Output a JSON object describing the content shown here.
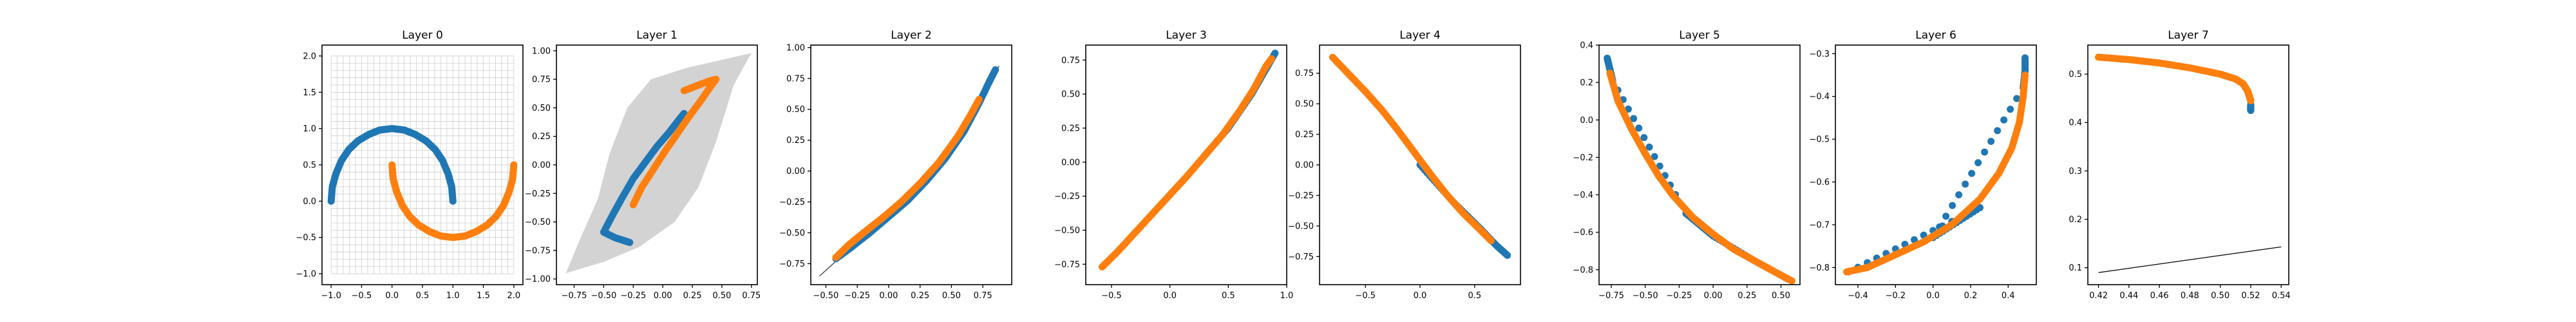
{
  "colors": {
    "blue": "#1f77b4",
    "orange": "#ff7f0e",
    "manifold": "#d3d3d3",
    "grid": "#c8c8c8",
    "line": "#333333"
  },
  "chart_data": [
    {
      "type": "scatter",
      "title": "Layer 0",
      "xlim": [
        -1.15,
        2.15
      ],
      "ylim": [
        -1.15,
        2.15
      ],
      "xticks": [
        -1.0,
        -0.5,
        0.0,
        0.5,
        1.0,
        1.5,
        2.0
      ],
      "xticklabels": [
        "−1.0",
        "−0.5",
        "0.0",
        "0.5",
        "1.0",
        "1.5",
        "2.0"
      ],
      "yticks": [
        -1.0,
        -0.5,
        0.0,
        0.5,
        1.0,
        1.5,
        2.0
      ],
      "yticklabels": [
        "−1.0",
        "−0.5",
        "0.0",
        "0.5",
        "1.0",
        "1.5",
        "2.0"
      ],
      "grid_region": {
        "x": [
          -1.0,
          2.0
        ],
        "y": [
          -1.0,
          2.0
        ],
        "step": 0.1
      },
      "series": [
        {
          "color": "blue",
          "points": [
            [
              -1.0,
              0.0
            ],
            [
              -0.98,
              0.2
            ],
            [
              -0.92,
              0.38
            ],
            [
              -0.83,
              0.56
            ],
            [
              -0.71,
              0.71
            ],
            [
              -0.56,
              0.83
            ],
            [
              -0.38,
              0.92
            ],
            [
              -0.2,
              0.98
            ],
            [
              0.0,
              1.0
            ],
            [
              0.2,
              0.98
            ],
            [
              0.38,
              0.92
            ],
            [
              0.56,
              0.83
            ],
            [
              0.71,
              0.71
            ],
            [
              0.83,
              0.56
            ],
            [
              0.92,
              0.38
            ],
            [
              0.98,
              0.2
            ],
            [
              1.0,
              0.0
            ]
          ]
        },
        {
          "color": "orange",
          "points": [
            [
              0.0,
              0.5
            ],
            [
              0.02,
              0.3
            ],
            [
              0.08,
              0.12
            ],
            [
              0.17,
              -0.06
            ],
            [
              0.29,
              -0.21
            ],
            [
              0.44,
              -0.33
            ],
            [
              0.62,
              -0.42
            ],
            [
              0.8,
              -0.48
            ],
            [
              1.0,
              -0.5
            ],
            [
              1.2,
              -0.48
            ],
            [
              1.38,
              -0.42
            ],
            [
              1.56,
              -0.33
            ],
            [
              1.71,
              -0.21
            ],
            [
              1.83,
              -0.06
            ],
            [
              1.92,
              0.12
            ],
            [
              1.98,
              0.3
            ],
            [
              2.0,
              0.5
            ]
          ]
        }
      ]
    },
    {
      "type": "scatter",
      "title": "Layer 1",
      "xlim": [
        -0.9,
        0.8
      ],
      "ylim": [
        -1.05,
        1.05
      ],
      "xticks": [
        -0.75,
        -0.5,
        -0.25,
        0.0,
        0.25,
        0.5,
        0.75
      ],
      "xticklabels": [
        "−0.75",
        "−0.50",
        "−0.25",
        "0.00",
        "0.25",
        "0.50",
        "0.75"
      ],
      "yticks": [
        -1.0,
        -0.75,
        -0.5,
        -0.25,
        0.0,
        0.25,
        0.5,
        0.75,
        1.0
      ],
      "yticklabels": [
        "−1.00",
        "−0.75",
        "−0.50",
        "−0.25",
        "0.00",
        "0.25",
        "0.50",
        "0.75",
        "1.00"
      ],
      "manifold": [
        [
          -0.82,
          -0.95
        ],
        [
          -0.7,
          -0.65
        ],
        [
          -0.55,
          -0.3
        ],
        [
          -0.45,
          0.1
        ],
        [
          -0.3,
          0.5
        ],
        [
          -0.1,
          0.75
        ],
        [
          0.2,
          0.85
        ],
        [
          0.5,
          0.92
        ],
        [
          0.75,
          0.98
        ],
        [
          0.6,
          0.7
        ],
        [
          0.45,
          0.2
        ],
        [
          0.3,
          -0.2
        ],
        [
          0.1,
          -0.5
        ],
        [
          -0.2,
          -0.72
        ],
        [
          -0.5,
          -0.85
        ]
      ],
      "series": [
        {
          "color": "blue",
          "points": [
            [
              -0.28,
              -0.68
            ],
            [
              -0.4,
              -0.64
            ],
            [
              -0.5,
              -0.59
            ],
            [
              -0.43,
              -0.45
            ],
            [
              -0.35,
              -0.3
            ],
            [
              -0.25,
              -0.12
            ],
            [
              -0.15,
              0.02
            ],
            [
              -0.05,
              0.16
            ],
            [
              0.05,
              0.28
            ],
            [
              0.14,
              0.4
            ],
            [
              0.18,
              0.45
            ]
          ]
        },
        {
          "color": "orange",
          "points": [
            [
              -0.25,
              -0.35
            ],
            [
              -0.18,
              -0.2
            ],
            [
              -0.08,
              -0.04
            ],
            [
              0.02,
              0.12
            ],
            [
              0.12,
              0.27
            ],
            [
              0.22,
              0.42
            ],
            [
              0.32,
              0.56
            ],
            [
              0.4,
              0.68
            ],
            [
              0.45,
              0.75
            ],
            [
              0.38,
              0.73
            ],
            [
              0.28,
              0.69
            ],
            [
              0.18,
              0.65
            ]
          ]
        }
      ]
    },
    {
      "type": "scatter",
      "title": "Layer 2",
      "xlim": [
        -0.62,
        0.98
      ],
      "ylim": [
        -0.92,
        1.02
      ],
      "xticks": [
        -0.5,
        -0.25,
        0.0,
        0.25,
        0.5,
        0.75
      ],
      "xticklabels": [
        "−0.50",
        "−0.25",
        "0.00",
        "0.25",
        "0.50",
        "0.75"
      ],
      "yticks": [
        -0.75,
        -0.5,
        -0.25,
        0.0,
        0.25,
        0.5,
        0.75,
        1.0
      ],
      "yticklabels": [
        "−0.75",
        "−0.50",
        "−0.25",
        "0.00",
        "0.25",
        "0.50",
        "0.75",
        "1.00"
      ],
      "manifold_line": [
        [
          -0.55,
          -0.85
        ],
        [
          -0.3,
          -0.62
        ],
        [
          0.0,
          -0.36
        ],
        [
          0.3,
          -0.05
        ],
        [
          0.6,
          0.38
        ],
        [
          0.88,
          0.85
        ]
      ],
      "series": [
        {
          "color": "blue",
          "points": [
            [
              -0.42,
              -0.71
            ],
            [
              -0.3,
              -0.62
            ],
            [
              -0.15,
              -0.5
            ],
            [
              0.0,
              -0.37
            ],
            [
              0.15,
              -0.24
            ],
            [
              0.3,
              -0.08
            ],
            [
              0.45,
              0.1
            ],
            [
              0.6,
              0.32
            ],
            [
              0.72,
              0.55
            ],
            [
              0.8,
              0.72
            ],
            [
              0.85,
              0.82
            ]
          ]
        },
        {
          "color": "orange",
          "points": [
            [
              -0.42,
              -0.7
            ],
            [
              -0.32,
              -0.6
            ],
            [
              -0.2,
              -0.5
            ],
            [
              -0.05,
              -0.38
            ],
            [
              0.1,
              -0.25
            ],
            [
              0.25,
              -0.1
            ],
            [
              0.4,
              0.07
            ],
            [
              0.55,
              0.28
            ],
            [
              0.65,
              0.45
            ],
            [
              0.72,
              0.58
            ]
          ]
        }
      ]
    },
    {
      "type": "scatter",
      "title": "Layer 3",
      "xlim": [
        -0.72,
        1.0
      ],
      "ylim": [
        -0.9,
        0.86
      ],
      "xticks": [
        -0.5,
        0.0,
        0.5,
        1.0
      ],
      "xticklabels": [
        "−0.5",
        "0.0",
        "0.5",
        "1.0"
      ],
      "yticks": [
        -0.75,
        -0.5,
        -0.25,
        0.0,
        0.25,
        0.5,
        0.75
      ],
      "yticklabels": [
        "−0.75",
        "−0.50",
        "−0.25",
        "0.00",
        "0.25",
        "0.50",
        "0.75"
      ],
      "series": [
        {
          "color": "blue",
          "points": [
            [
              0.3,
              0.05
            ],
            [
              0.5,
              0.25
            ],
            [
              0.7,
              0.5
            ],
            [
              0.82,
              0.68
            ],
            [
              0.9,
              0.8
            ]
          ]
        },
        {
          "color": "orange",
          "points": [
            [
              -0.58,
              -0.77
            ],
            [
              -0.45,
              -0.66
            ],
            [
              -0.3,
              -0.52
            ],
            [
              -0.15,
              -0.38
            ],
            [
              0.0,
              -0.24
            ],
            [
              0.15,
              -0.1
            ],
            [
              0.3,
              0.05
            ],
            [
              0.45,
              0.2
            ],
            [
              0.6,
              0.38
            ],
            [
              0.72,
              0.54
            ],
            [
              0.82,
              0.7
            ],
            [
              0.87,
              0.76
            ]
          ]
        }
      ]
    },
    {
      "type": "scatter",
      "title": "Layer 4",
      "xlim": [
        -0.92,
        0.92
      ],
      "ylim": [
        -0.98,
        0.98
      ],
      "xticks": [
        -0.5,
        0.0,
        0.5
      ],
      "xticklabels": [
        "−0.5",
        "0.0",
        "0.5"
      ],
      "yticks": [
        -0.75,
        -0.5,
        -0.25,
        0.0,
        0.25,
        0.5,
        0.75
      ],
      "yticklabels": [
        "−0.75",
        "−0.50",
        "−0.25",
        "0.00",
        "0.25",
        "0.50",
        "0.75"
      ],
      "series": [
        {
          "color": "blue",
          "points": [
            [
              0.0,
              0.0
            ],
            [
              0.3,
              -0.3
            ],
            [
              0.55,
              -0.52
            ],
            [
              0.7,
              -0.66
            ],
            [
              0.8,
              -0.74
            ]
          ]
        },
        {
          "color": "orange",
          "points": [
            [
              -0.8,
              0.88
            ],
            [
              -0.65,
              0.74
            ],
            [
              -0.5,
              0.6
            ],
            [
              -0.35,
              0.45
            ],
            [
              -0.2,
              0.28
            ],
            [
              -0.05,
              0.1
            ],
            [
              0.1,
              -0.08
            ],
            [
              0.25,
              -0.25
            ],
            [
              0.4,
              -0.4
            ],
            [
              0.55,
              -0.53
            ],
            [
              0.65,
              -0.62
            ]
          ]
        }
      ]
    },
    {
      "type": "scatter",
      "title": "Layer 5",
      "xlim": [
        -0.84,
        0.64
      ],
      "ylim": [
        -0.88,
        0.4
      ],
      "xticks": [
        -0.75,
        -0.5,
        -0.25,
        0.0,
        0.25,
        0.5
      ],
      "xticklabels": [
        "−0.75",
        "−0.50",
        "−0.25",
        "0.00",
        "0.25",
        "0.50"
      ],
      "yticks": [
        -0.8,
        -0.6,
        -0.4,
        -0.2,
        0.0,
        0.2,
        0.4
      ],
      "yticklabels": [
        "−0.8",
        "−0.6",
        "−0.4",
        "−0.2",
        "0.0",
        "0.2",
        "0.4"
      ],
      "series": [
        {
          "color": "blue",
          "points": [
            [
              -0.78,
              0.33
            ],
            [
              -0.76,
              0.27
            ],
            [
              -0.74,
              0.21
            ],
            [
              -0.2,
              -0.5
            ],
            [
              0.0,
              -0.62
            ],
            [
              0.3,
              -0.75
            ],
            [
              0.55,
              -0.85
            ]
          ]
        },
        {
          "color": "orange",
          "points": [
            [
              -0.76,
              0.25
            ],
            [
              -0.7,
              0.1
            ],
            [
              -0.6,
              -0.05
            ],
            [
              -0.5,
              -0.18
            ],
            [
              -0.4,
              -0.3
            ],
            [
              -0.3,
              -0.4
            ],
            [
              -0.15,
              -0.52
            ],
            [
              0.0,
              -0.61
            ],
            [
              0.15,
              -0.69
            ],
            [
              0.3,
              -0.75
            ],
            [
              0.45,
              -0.81
            ],
            [
              0.58,
              -0.86
            ]
          ]
        }
      ]
    },
    {
      "type": "scatter",
      "title": "Layer 6",
      "xlim": [
        -0.52,
        0.55
      ],
      "ylim": [
        -0.84,
        -0.28
      ],
      "xticks": [
        -0.4,
        -0.2,
        0.0,
        0.2,
        0.4
      ],
      "xticklabels": [
        "−0.4",
        "−0.2",
        "0.0",
        "0.2",
        "0.4"
      ],
      "yticks": [
        -0.8,
        -0.7,
        -0.6,
        -0.5,
        -0.4,
        -0.3
      ],
      "yticklabels": [
        "−0.8",
        "−0.7",
        "−0.6",
        "−0.5",
        "−0.4",
        "−0.3"
      ],
      "series": [
        {
          "color": "blue",
          "points": [
            [
              0.49,
              -0.31
            ],
            [
              0.49,
              -0.34
            ],
            [
              0.48,
              -0.38
            ],
            [
              0.0,
              -0.73
            ],
            [
              0.25,
              -0.66
            ],
            [
              -0.45,
              -0.81
            ]
          ]
        },
        {
          "color": "orange",
          "points": [
            [
              -0.46,
              -0.81
            ],
            [
              -0.35,
              -0.8
            ],
            [
              -0.2,
              -0.77
            ],
            [
              -0.05,
              -0.74
            ],
            [
              0.1,
              -0.7
            ],
            [
              0.25,
              -0.64
            ],
            [
              0.35,
              -0.58
            ],
            [
              0.42,
              -0.52
            ],
            [
              0.46,
              -0.46
            ],
            [
              0.48,
              -0.4
            ],
            [
              0.49,
              -0.35
            ]
          ]
        }
      ]
    },
    {
      "type": "scatter",
      "title": "Layer 7",
      "xlim": [
        0.413,
        0.545
      ],
      "ylim": [
        0.065,
        0.56
      ],
      "xticks": [
        0.42,
        0.44,
        0.46,
        0.48,
        0.5,
        0.52,
        0.54
      ],
      "xticklabels": [
        "0.42",
        "0.44",
        "0.46",
        "0.48",
        "0.50",
        "0.52",
        "0.54"
      ],
      "yticks": [
        0.1,
        0.2,
        0.3,
        0.4,
        0.5
      ],
      "yticklabels": [
        "0.1",
        "0.2",
        "0.3",
        "0.4",
        "0.5"
      ],
      "manifold_line": [
        [
          0.42,
          0.09
        ],
        [
          0.54,
          0.143
        ]
      ],
      "series": [
        {
          "color": "blue",
          "points": [
            [
              0.52,
              0.425
            ],
            [
              0.52,
              0.43
            ],
            [
              0.52,
              0.437
            ]
          ]
        },
        {
          "color": "orange",
          "points": [
            [
              0.42,
              0.535
            ],
            [
              0.44,
              0.53
            ],
            [
              0.46,
              0.523
            ],
            [
              0.48,
              0.513
            ],
            [
              0.5,
              0.5
            ],
            [
              0.51,
              0.49
            ],
            [
              0.515,
              0.48
            ],
            [
              0.518,
              0.465
            ],
            [
              0.519,
              0.455
            ],
            [
              0.52,
              0.445
            ]
          ]
        }
      ]
    }
  ]
}
